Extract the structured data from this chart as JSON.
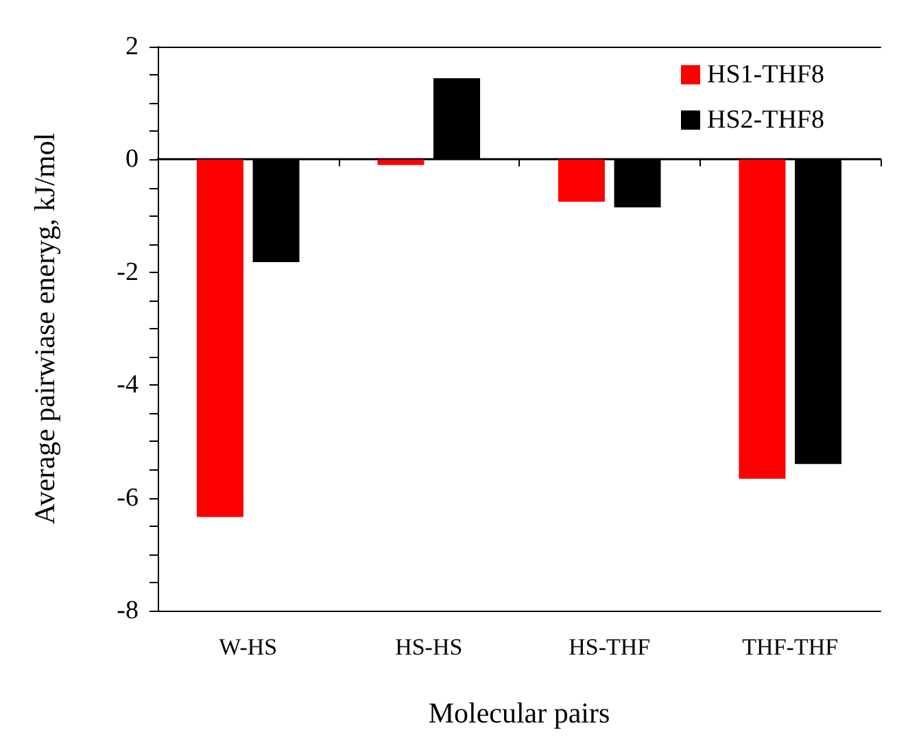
{
  "chart_data": {
    "type": "bar",
    "xlabel": "Molecular pairs",
    "ylabel": "Average pairwiase eneryg, kJ/mol",
    "categories": [
      "W-HS",
      "HS-HS",
      "HS-THF",
      "THF-THF"
    ],
    "series": [
      {
        "name": "HS1-THF8",
        "color": "#ff0000",
        "values": [
          -6.34,
          -0.1,
          -0.75,
          -5.66
        ]
      },
      {
        "name": "HS2-THF8",
        "color": "#000000",
        "values": [
          -1.82,
          1.44,
          -0.85,
          -5.4
        ]
      }
    ],
    "ylim": [
      -8,
      2
    ],
    "yticks": [
      -8,
      {
        "value": -7.5,
        "label": null
      },
      {
        "value": -7,
        "label": null
      },
      {
        "value": -6.5,
        "label": null
      },
      -6,
      {
        "value": -5.5,
        "label": null
      },
      {
        "value": -5,
        "label": null
      },
      {
        "value": -4.5,
        "label": null
      },
      -4,
      {
        "value": -3.5,
        "label": null
      },
      {
        "value": -3,
        "label": null
      },
      {
        "value": -2.5,
        "label": null
      },
      -2,
      {
        "value": -1.5,
        "label": null
      },
      {
        "value": -1,
        "label": null
      },
      {
        "value": -0.5,
        "label": null
      },
      0,
      {
        "value": 0.5,
        "label": null
      },
      {
        "value": 1,
        "label": null
      },
      {
        "value": 1.5,
        "label": null
      },
      2
    ],
    "legend": "top right"
  }
}
